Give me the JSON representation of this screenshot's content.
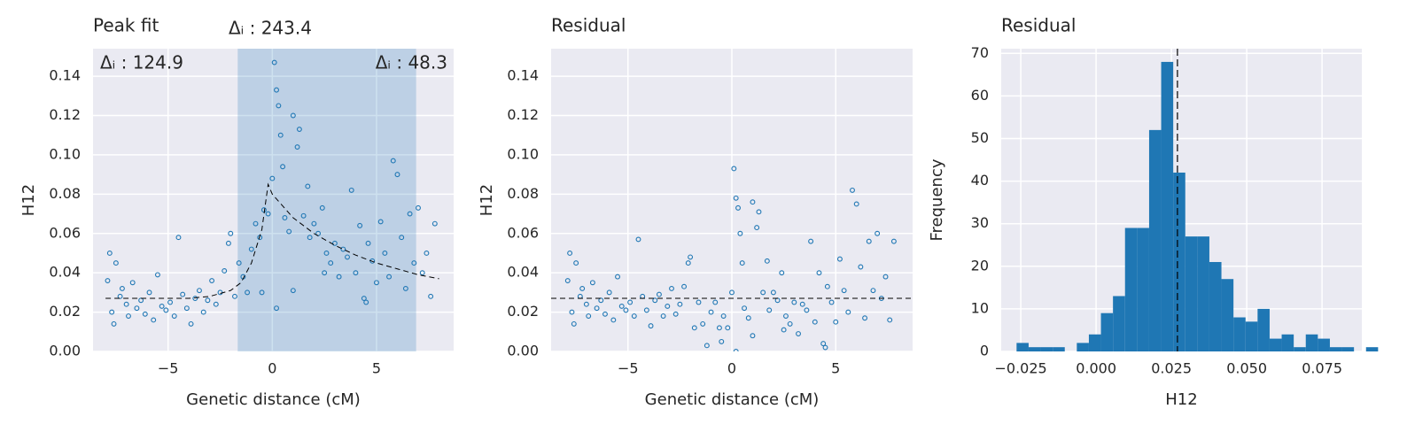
{
  "chart_data": [
    {
      "type": "scatter",
      "title": "Peak fit",
      "xlabel": "Genetic distance (cM)",
      "ylabel": "H12",
      "xlim": [
        -8.6,
        8.7
      ],
      "ylim": [
        0,
        0.154
      ],
      "xticks": [
        {
          "value": -5,
          "label": "−5"
        },
        0,
        5
      ],
      "yticks": [
        {
          "value": 0,
          "label": "0.00"
        },
        {
          "value": 0.02,
          "label": "0.02"
        },
        {
          "value": 0.04,
          "label": "0.04"
        },
        {
          "value": 0.06,
          "label": "0.06"
        },
        {
          "value": 0.08,
          "label": "0.08"
        },
        {
          "value": 0.1,
          "label": "0.10"
        },
        {
          "value": 0.12,
          "label": "0.12"
        },
        {
          "value": 0.14,
          "label": "0.14"
        }
      ],
      "grid": true,
      "color": "#1f77b4",
      "span": [
        -1.66,
        6.9
      ],
      "span_color": "#1f77b4",
      "annotations": [
        "Δᵢ : 124.9",
        "Δᵢ : 243.4",
        "Δᵢ : 48.3"
      ],
      "x": [
        -7.9,
        -7.8,
        -7.7,
        -7.6,
        -7.5,
        -7.3,
        -7.2,
        -7.0,
        -6.9,
        -6.7,
        -6.5,
        -6.3,
        -6.1,
        -5.9,
        -5.7,
        -5.5,
        -5.3,
        -5.1,
        -4.9,
        -4.7,
        -4.5,
        -4.3,
        -4.1,
        -3.9,
        -3.7,
        -3.5,
        -3.3,
        -3.1,
        -2.9,
        -2.7,
        -2.5,
        -2.3,
        -2.1,
        -2.0,
        -1.8,
        -1.6,
        -1.4,
        -1.2,
        -1.0,
        -0.8,
        -0.6,
        -0.4,
        -0.2,
        0,
        0.1,
        0.2,
        0.3,
        0.4,
        0.5,
        0.6,
        0.8,
        1.0,
        1.2,
        1.3,
        1.5,
        1.7,
        1.8,
        2.0,
        2.2,
        2.4,
        2.6,
        2.8,
        3.0,
        3.2,
        3.4,
        3.6,
        3.8,
        4.0,
        4.2,
        4.4,
        4.6,
        4.8,
        5.0,
        5.2,
        5.4,
        5.6,
        5.8,
        6.0,
        6.2,
        6.4,
        6.6,
        6.8,
        7.0,
        7.2,
        7.4,
        7.6,
        7.8,
        0.2,
        1.0,
        -0.5,
        4.5,
        2.5
      ],
      "y": [
        0.036,
        0.05,
        0.02,
        0.014,
        0.045,
        0.028,
        0.032,
        0.024,
        0.018,
        0.035,
        0.022,
        0.026,
        0.019,
        0.03,
        0.016,
        0.039,
        0.023,
        0.021,
        0.025,
        0.018,
        0.058,
        0.029,
        0.022,
        0.014,
        0.027,
        0.031,
        0.02,
        0.026,
        0.036,
        0.024,
        0.03,
        0.041,
        0.055,
        0.06,
        0.028,
        0.045,
        0.038,
        0.03,
        0.052,
        0.065,
        0.058,
        0.072,
        0.07,
        0.088,
        0.147,
        0.133,
        0.125,
        0.11,
        0.094,
        0.068,
        0.061,
        0.12,
        0.104,
        0.113,
        0.069,
        0.084,
        0.058,
        0.065,
        0.06,
        0.073,
        0.05,
        0.045,
        0.055,
        0.038,
        0.052,
        0.048,
        0.082,
        0.04,
        0.064,
        0.027,
        0.055,
        0.046,
        0.035,
        0.066,
        0.05,
        0.038,
        0.097,
        0.09,
        0.058,
        0.032,
        0.07,
        0.045,
        0.073,
        0.04,
        0.05,
        0.028,
        0.065,
        0.022,
        0.031,
        0.03,
        0.025,
        0.04
      ],
      "fit": {
        "color": "#000000",
        "x": [
          -8,
          -6,
          -4,
          -3,
          -2,
          -1.5,
          -1,
          -0.5,
          -0.2,
          0,
          0.5,
          1,
          2,
          3,
          4,
          5,
          6,
          7,
          8
        ],
        "y": [
          0.027,
          0.027,
          0.027,
          0.028,
          0.031,
          0.035,
          0.045,
          0.062,
          0.085,
          0.08,
          0.074,
          0.068,
          0.06,
          0.054,
          0.049,
          0.045,
          0.042,
          0.039,
          0.037
        ]
      }
    },
    {
      "type": "scatter",
      "title": "Residual",
      "xlabel": "Genetic distance (cM)",
      "ylabel": "H12",
      "xlim": [
        -8.7,
        8.7
      ],
      "ylim": [
        0,
        0.154
      ],
      "xticks": [
        {
          "value": -5,
          "label": "−5"
        },
        0,
        5
      ],
      "yticks": [
        {
          "value": 0,
          "label": "0.00"
        },
        {
          "value": 0.02,
          "label": "0.02"
        },
        {
          "value": 0.04,
          "label": "0.04"
        },
        {
          "value": 0.06,
          "label": "0.06"
        },
        {
          "value": 0.08,
          "label": "0.08"
        },
        {
          "value": 0.1,
          "label": "0.10"
        },
        {
          "value": 0.12,
          "label": "0.12"
        },
        {
          "value": 0.14,
          "label": "0.14"
        }
      ],
      "grid": true,
      "color": "#1f77b4",
      "hline": 0.027,
      "hline_color": "#000000",
      "x": [
        -7.9,
        -7.8,
        -7.7,
        -7.6,
        -7.5,
        -7.3,
        -7.2,
        -7.0,
        -6.9,
        -6.7,
        -6.5,
        -6.3,
        -6.1,
        -5.9,
        -5.7,
        -5.5,
        -5.3,
        -5.1,
        -4.9,
        -4.7,
        -4.5,
        -4.3,
        -4.1,
        -3.9,
        -3.7,
        -3.5,
        -3.3,
        -3.1,
        -2.9,
        -2.7,
        -2.5,
        -2.3,
        -2.1,
        -2.0,
        -1.8,
        -1.6,
        -1.4,
        -1.2,
        -1.0,
        -0.8,
        -0.6,
        -0.4,
        -0.2,
        0,
        0.1,
        0.2,
        0.3,
        0.4,
        0.5,
        0.6,
        0.8,
        1.0,
        1.2,
        1.3,
        1.5,
        1.7,
        1.8,
        2.0,
        2.2,
        2.4,
        2.6,
        2.8,
        3.0,
        3.2,
        3.4,
        3.6,
        3.8,
        4.0,
        4.2,
        4.4,
        4.6,
        4.8,
        5.0,
        5.2,
        5.4,
        5.6,
        5.8,
        6.0,
        6.2,
        6.4,
        6.6,
        6.8,
        7.0,
        7.2,
        7.4,
        7.6,
        7.8,
        0.2,
        1.0,
        -0.5,
        4.5,
        2.5
      ],
      "y": [
        0.036,
        0.05,
        0.02,
        0.014,
        0.045,
        0.028,
        0.032,
        0.024,
        0.018,
        0.035,
        0.022,
        0.026,
        0.019,
        0.03,
        0.016,
        0.038,
        0.023,
        0.021,
        0.025,
        0.018,
        0.057,
        0.028,
        0.021,
        0.013,
        0.026,
        0.029,
        0.018,
        0.023,
        0.032,
        0.019,
        0.024,
        0.033,
        0.045,
        0.048,
        0.012,
        0.025,
        0.014,
        0.003,
        0.02,
        0.025,
        0.012,
        0.018,
        0.012,
        0.03,
        0.093,
        0.078,
        0.073,
        0.06,
        0.045,
        0.022,
        0.017,
        0.076,
        0.063,
        0.071,
        0.03,
        0.046,
        0.021,
        0.03,
        0.026,
        0.04,
        0.018,
        0.014,
        0.025,
        0.009,
        0.024,
        0.021,
        0.056,
        0.015,
        0.04,
        0.004,
        0.033,
        0.025,
        0.015,
        0.047,
        0.031,
        0.02,
        0.082,
        0.075,
        0.043,
        0.017,
        0.056,
        0.031,
        0.06,
        0.027,
        0.038,
        0.016,
        0.056,
        0.0,
        0.008,
        0.005,
        0.002,
        0.011
      ]
    },
    {
      "type": "histogram",
      "title": "Residual",
      "xlabel": "H12",
      "ylabel": "Frequency",
      "xlim": [
        -0.0315,
        0.0882
      ],
      "ylim": [
        0,
        71.1
      ],
      "xticks": [
        {
          "value": -0.025,
          "label": "−0.025"
        },
        {
          "value": 0,
          "label": "0.000"
        },
        {
          "value": 0.025,
          "label": "0.025"
        },
        {
          "value": 0.05,
          "label": "0.050"
        },
        {
          "value": 0.075,
          "label": "0.075"
        }
      ],
      "yticks": [
        0,
        10,
        20,
        30,
        40,
        50,
        60,
        70
      ],
      "grid": true,
      "color": "#1f77b4",
      "vline": 0.027,
      "vline_color": "#000000",
      "bins": [
        -0.0264,
        -0.0224,
        -0.0184,
        -0.0144,
        -0.0104,
        -0.0064,
        -0.0024,
        0.0016,
        0.0056,
        0.0096,
        0.0136,
        0.0176,
        0.0216,
        0.0256,
        0.0296,
        0.0336,
        0.0376,
        0.0416,
        0.0456,
        0.0496,
        0.0536,
        0.0576,
        0.0616,
        0.0656,
        0.0696,
        0.0736,
        0.0776,
        0.0816,
        0.0856,
        0.0896,
        0.0936
      ],
      "counts": [
        2,
        1,
        1,
        1,
        0,
        2,
        4,
        9,
        13,
        29,
        29,
        52,
        68,
        42,
        27,
        27,
        21,
        17,
        8,
        7,
        10,
        3,
        4,
        1,
        4,
        3,
        1,
        1,
        0,
        1
      ]
    }
  ]
}
